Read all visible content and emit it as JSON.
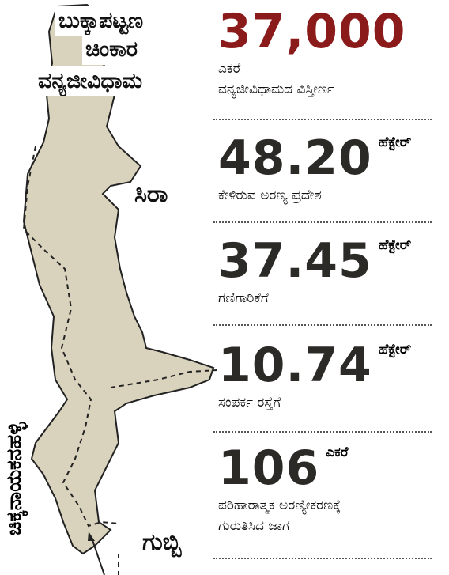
{
  "map": {
    "title_lines": [
      "ಬುಕ್ಕಾಪಟ್ಟಣ",
      "ಚಿಂಕಾರ",
      "ವನ್ಯಜೀವಿಧಾಮ"
    ],
    "place_sira": "ಸಿರಾ",
    "place_gubbi": "ಗುಬ್ಬಿ",
    "place_chikkanayakanahalli": "ಚಿಕ್ಕನಾಯಕನಹಳ್ಳಿ",
    "land_color": "#d9d3bd",
    "border_color": "#222222"
  },
  "stats": [
    {
      "value": "37,000",
      "unit": "",
      "lines": [
        "ಎಕರೆ",
        "ವನ್ಯಜೀವಿಧಾಮದ ವಿಸ್ತೀರ್ಣ"
      ],
      "color": "#8b1a1a"
    },
    {
      "value": "48.20",
      "unit": "ಹೆಕ್ಟೇರ್",
      "lines": [
        "ಕೇಳಿರುವ ಅರಣ್ಯ ಪ್ರದೇಶ"
      ],
      "color": "#2b2a26"
    },
    {
      "value": "37.45",
      "unit": "ಹೆಕ್ಟೇರ್",
      "lines": [
        "ಗಣಿಗಾರಿಕೆಗೆ"
      ],
      "color": "#2b2a26"
    },
    {
      "value": "10.74",
      "unit": "ಹೆಕ್ಟೇರ್",
      "lines": [
        "ಸಂಪರ್ಕ ರಸ್ತೆಗೆ"
      ],
      "color": "#2b2a26"
    },
    {
      "value": "106",
      "unit": "",
      "lines": [
        "ಎಕರೆ",
        "ಪರಿಹಾರಾತ್ಮಕ ಅರಣ್ಯೀಕರಣಕ್ಕೆ",
        "ಗುರುತಿಸಿದ ಜಾಗ"
      ],
      "color": "#2b2a26"
    }
  ]
}
